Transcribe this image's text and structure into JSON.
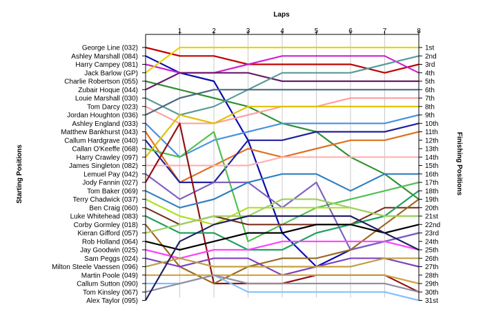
{
  "chart_data": {
    "type": "line",
    "title": "",
    "xlabel": "Laps",
    "ylabel_left": "Starting Positions",
    "ylabel_right": "Finishing Positions",
    "x": [
      0,
      1,
      2,
      3,
      4,
      5,
      6,
      7,
      8
    ],
    "x_tick_labels": [
      "1",
      "2",
      "3",
      "4",
      "5",
      "6",
      "7",
      "8"
    ],
    "y_reversed": true,
    "grid": "vertical",
    "start_labels": [
      "George Line (032)",
      "Ashley Marshall (084)",
      "Harry Campey (081)",
      "Jack Barlow (GP)",
      "Charlie Robertson (055)",
      "Zubair Hoque (044)",
      "Louie Marshall (030)",
      "Tom Darcy (023)",
      "Jordan Houghton (036)",
      "Ashley England (033)",
      "Matthew Bankhurst (043)",
      "Callum Hardgrave (040)",
      "Callan O'Keeffe (068)",
      "Harry Crawley (097)",
      "James Singleton (082)",
      "Lemuel Pay (042)",
      "Jody Fannin (027)",
      "Tom Baker (069)",
      "Terry Chadwick (037)",
      "Ben Craig (060)",
      "Luke Whitehead (083)",
      "Corby Gormley (018)",
      "Kieran Gifford (057)",
      "Rob Holland (064)",
      "Jay Goodwin (025)",
      "Sam Peggs (024)",
      "Milton Steele Vaessen (096)",
      "Martin Poole (049)",
      "Callum Sutton (090)",
      "Tom Kinsley (067)",
      "Alex Taylor (095)"
    ],
    "finish_labels": [
      "1st",
      "2nd",
      "3rd",
      "4th",
      "5th",
      "6th",
      "7th",
      "8th",
      "9th",
      "10th",
      "11th",
      "12th",
      "13th",
      "14th",
      "15th",
      "16th",
      "17th",
      "18th",
      "19th",
      "20th",
      "21st",
      "22nd",
      "23rd",
      "24th",
      "25th",
      "26th",
      "27th",
      "28th",
      "29th",
      "30th",
      "31st"
    ],
    "series": [
      {
        "color": "#c00000",
        "values": [
          1,
          2,
          2,
          3,
          3,
          3,
          3,
          4,
          3
        ]
      },
      {
        "color": "#0a0ab0",
        "values": [
          2,
          4,
          5,
          12,
          23,
          27,
          25,
          24,
          23
        ]
      },
      {
        "color": "#d020d0",
        "values": [
          3,
          4,
          4,
          3,
          2,
          2,
          2,
          2,
          4
        ]
      },
      {
        "color": "#e6d400",
        "values": [
          4,
          1,
          1,
          1,
          1,
          1,
          1,
          1,
          1
        ]
      },
      {
        "color": "#309030",
        "values": [
          5,
          6,
          7,
          8,
          10,
          11,
          14,
          16,
          19
        ]
      },
      {
        "color": "#6a1a6a",
        "values": [
          6,
          4,
          4,
          4,
          5,
          5,
          5,
          5,
          5
        ]
      },
      {
        "color": "#5a9a9a",
        "values": [
          7,
          9,
          8,
          6,
          4,
          4,
          4,
          3,
          2
        ]
      },
      {
        "color": "#ffa0a0",
        "values": [
          8,
          10,
          10,
          9,
          8,
          8,
          7,
          7,
          7
        ]
      },
      {
        "color": "#4a6a80",
        "values": [
          9,
          7,
          6,
          6,
          6,
          6,
          6,
          6,
          6
        ]
      },
      {
        "color": "#4a90e0",
        "values": [
          10,
          14,
          12,
          11,
          10,
          10,
          10,
          10,
          9
        ]
      },
      {
        "color": "#e07020",
        "values": [
          11,
          17,
          15,
          13,
          14,
          13,
          12,
          12,
          11
        ]
      },
      {
        "color": "#2020a0",
        "values": [
          12,
          17,
          17,
          12,
          12,
          11,
          11,
          11,
          10
        ]
      },
      {
        "color": "#50c050",
        "values": [
          13,
          14,
          11,
          24,
          22,
          20,
          19,
          18,
          17
        ]
      },
      {
        "color": "#e0c000",
        "values": [
          14,
          9,
          10,
          8,
          8,
          8,
          8,
          8,
          8
        ]
      },
      {
        "color": "#ffb0b0",
        "values": [
          15,
          15,
          15,
          15,
          14,
          14,
          14,
          14,
          14
        ]
      },
      {
        "color": "#8060c0",
        "values": [
          16,
          19,
          17,
          17,
          20,
          17,
          25,
          24,
          23
        ]
      },
      {
        "color": "#901010",
        "values": [
          17,
          10,
          29,
          29,
          29,
          28,
          28,
          28,
          30
        ]
      },
      {
        "color": "#3080c0",
        "values": [
          18,
          20,
          19,
          17,
          16,
          16,
          18,
          16,
          16
        ]
      },
      {
        "color": "#b0e020",
        "values": [
          19,
          21,
          22,
          20,
          20,
          20,
          20,
          21,
          21
        ]
      },
      {
        "color": "#7a3020",
        "values": [
          20,
          22,
          21,
          22,
          22,
          22,
          22,
          20,
          20
        ]
      },
      {
        "color": "#20a060",
        "values": [
          21,
          23,
          23,
          25,
          25,
          23,
          22,
          21,
          18
        ]
      },
      {
        "color": "#9a6a20",
        "values": [
          22,
          27,
          29,
          27,
          26,
          26,
          25,
          22,
          19
        ]
      },
      {
        "color": "#a0d060",
        "values": [
          23,
          22,
          21,
          21,
          19,
          19,
          20,
          21,
          21
        ]
      },
      {
        "color": "#000000",
        "values": [
          24,
          25,
          24,
          23,
          23,
          22,
          22,
          23,
          22
        ]
      },
      {
        "color": "#ff40ff",
        "values": [
          25,
          26,
          25,
          25,
          24,
          24,
          24,
          24,
          25
        ]
      },
      {
        "color": "#8040c0",
        "values": [
          26,
          27,
          26,
          26,
          28,
          27,
          26,
          26,
          27
        ]
      },
      {
        "color": "#c0a040",
        "values": [
          27,
          26,
          27,
          27,
          27,
          27,
          27,
          26,
          26
        ]
      },
      {
        "color": "#d0a040",
        "values": [
          28,
          28,
          28,
          28,
          28,
          28,
          28,
          28,
          29
        ]
      },
      {
        "color": "#80c0ff",
        "values": [
          29,
          29,
          28,
          30,
          30,
          30,
          30,
          30,
          31
        ]
      },
      {
        "color": "#9090a0",
        "values": [
          30,
          29,
          28,
          29,
          29,
          29,
          29,
          29,
          30
        ]
      },
      {
        "color": "#202060",
        "values": [
          31,
          24,
          22,
          21,
          21,
          21,
          21,
          23,
          25
        ]
      }
    ]
  }
}
